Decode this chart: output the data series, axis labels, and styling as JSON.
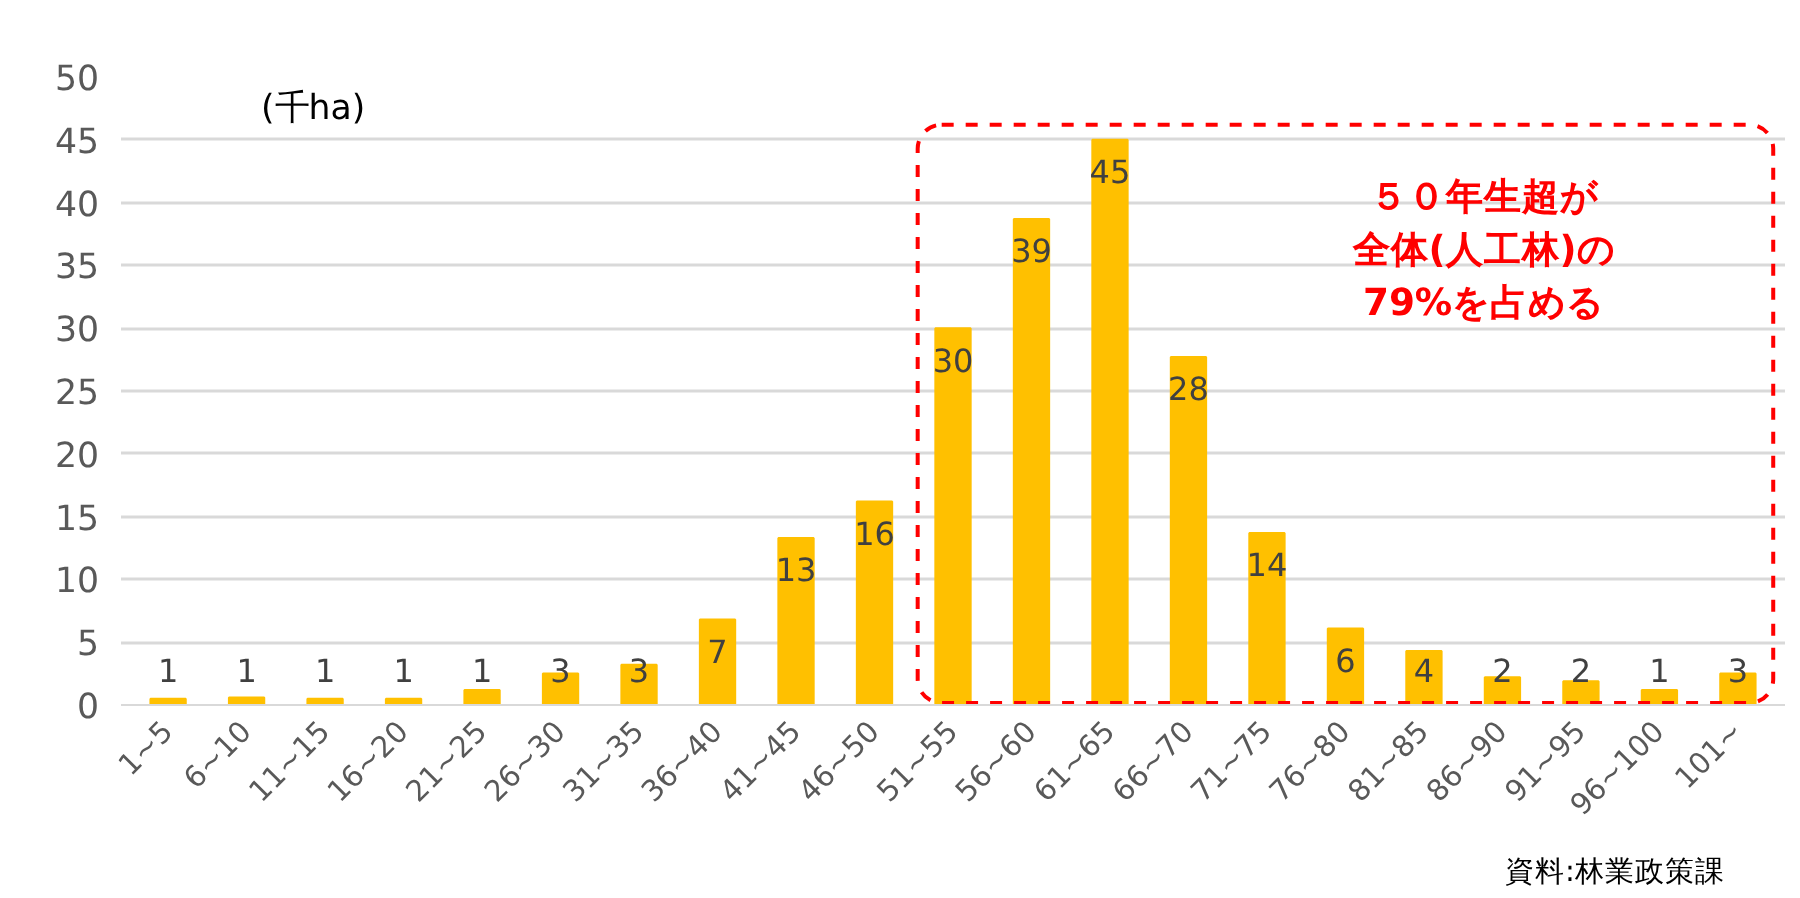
{
  "chart_data": {
    "type": "bar",
    "ylabel": "(千ha)",
    "categories": [
      "1~5",
      "6~10",
      "11~15",
      "16~20",
      "21~25",
      "26~30",
      "31~35",
      "36~40",
      "41~45",
      "46~50",
      "51~55",
      "56~60",
      "61~65",
      "66~70",
      "71~75",
      "76~80",
      "81~85",
      "86~90",
      "91~95",
      "96~100",
      "101~"
    ],
    "values": [
      0.5,
      0.6,
      0.5,
      0.5,
      1.2,
      2.5,
      3.2,
      6.8,
      13.3,
      16.2,
      30.0,
      38.7,
      45.0,
      27.7,
      13.7,
      6.1,
      4.3,
      2.2,
      1.9,
      1.2,
      2.5
    ],
    "value_labels": [
      "1",
      "1",
      "1",
      "1",
      "1",
      "3",
      "3",
      "7",
      "13",
      "16",
      "30",
      "39",
      "45",
      "28",
      "14",
      "6",
      "4",
      "2",
      "2",
      "1",
      "3"
    ],
    "color": "#ffc000",
    "ylim": [
      0,
      50
    ],
    "yticks": [
      0,
      5,
      10,
      15,
      20,
      25,
      30,
      35,
      40,
      45,
      50
    ],
    "grid": "y",
    "annotations": [
      "５０年生超が",
      "全体(人工林)の",
      "79%を占める",
      "資料:林業政策課"
    ]
  }
}
